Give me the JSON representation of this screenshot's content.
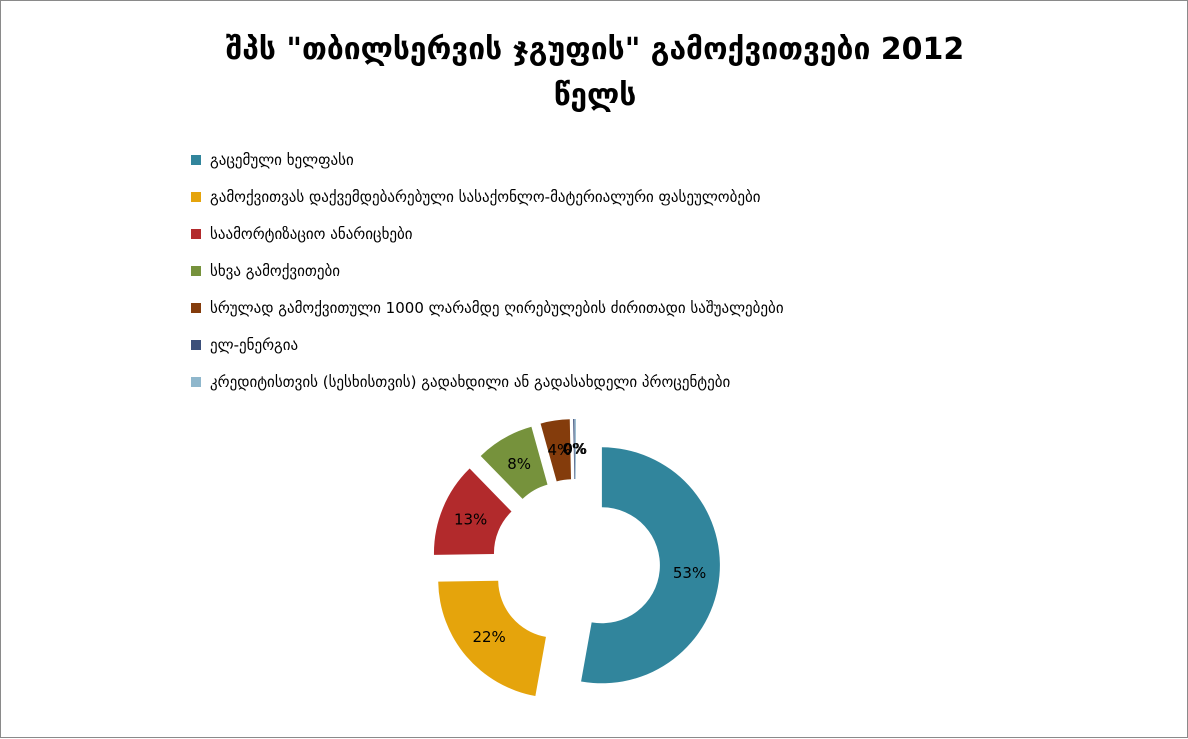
{
  "chart_data": {
    "type": "pie",
    "title": "შპს \"თბილსერვის ჯგუფის\" გამოქვითვები 2012 წელს",
    "title_lines": [
      "შპს \"თბილსერვის ჯგუფის\" გამოქვითვები 2012",
      "წელს"
    ],
    "legend_position": "top",
    "donut": true,
    "exploded": true,
    "categories": [
      "გაცემული ხელფასი",
      "გამოქვითვას დაქვემდებარებული სასაქონლო-მატერიალური ფასეულობები",
      "საამორტიზაციო ანარიცხები",
      "სხვა გამოქვითები",
      "სრულად გამოქვითული 1000 ლარამდე ღირებულების ძირითადი საშუალებები",
      "ელ-ენერგია",
      "კრედიტისთვის (სესხისთვის) გადახდილი ან გადასახდელი პროცენტები"
    ],
    "values": [
      53,
      22,
      13,
      8,
      4,
      0,
      0
    ],
    "data_labels": [
      "53%",
      "22%",
      "13%",
      "8%",
      "4%",
      "0%",
      "0%"
    ],
    "colors": [
      "#31859c",
      "#e5a40c",
      "#b22a2c",
      "#76923c",
      "#843c0c",
      "#3b4f7a",
      "#8fb7cc"
    ]
  }
}
